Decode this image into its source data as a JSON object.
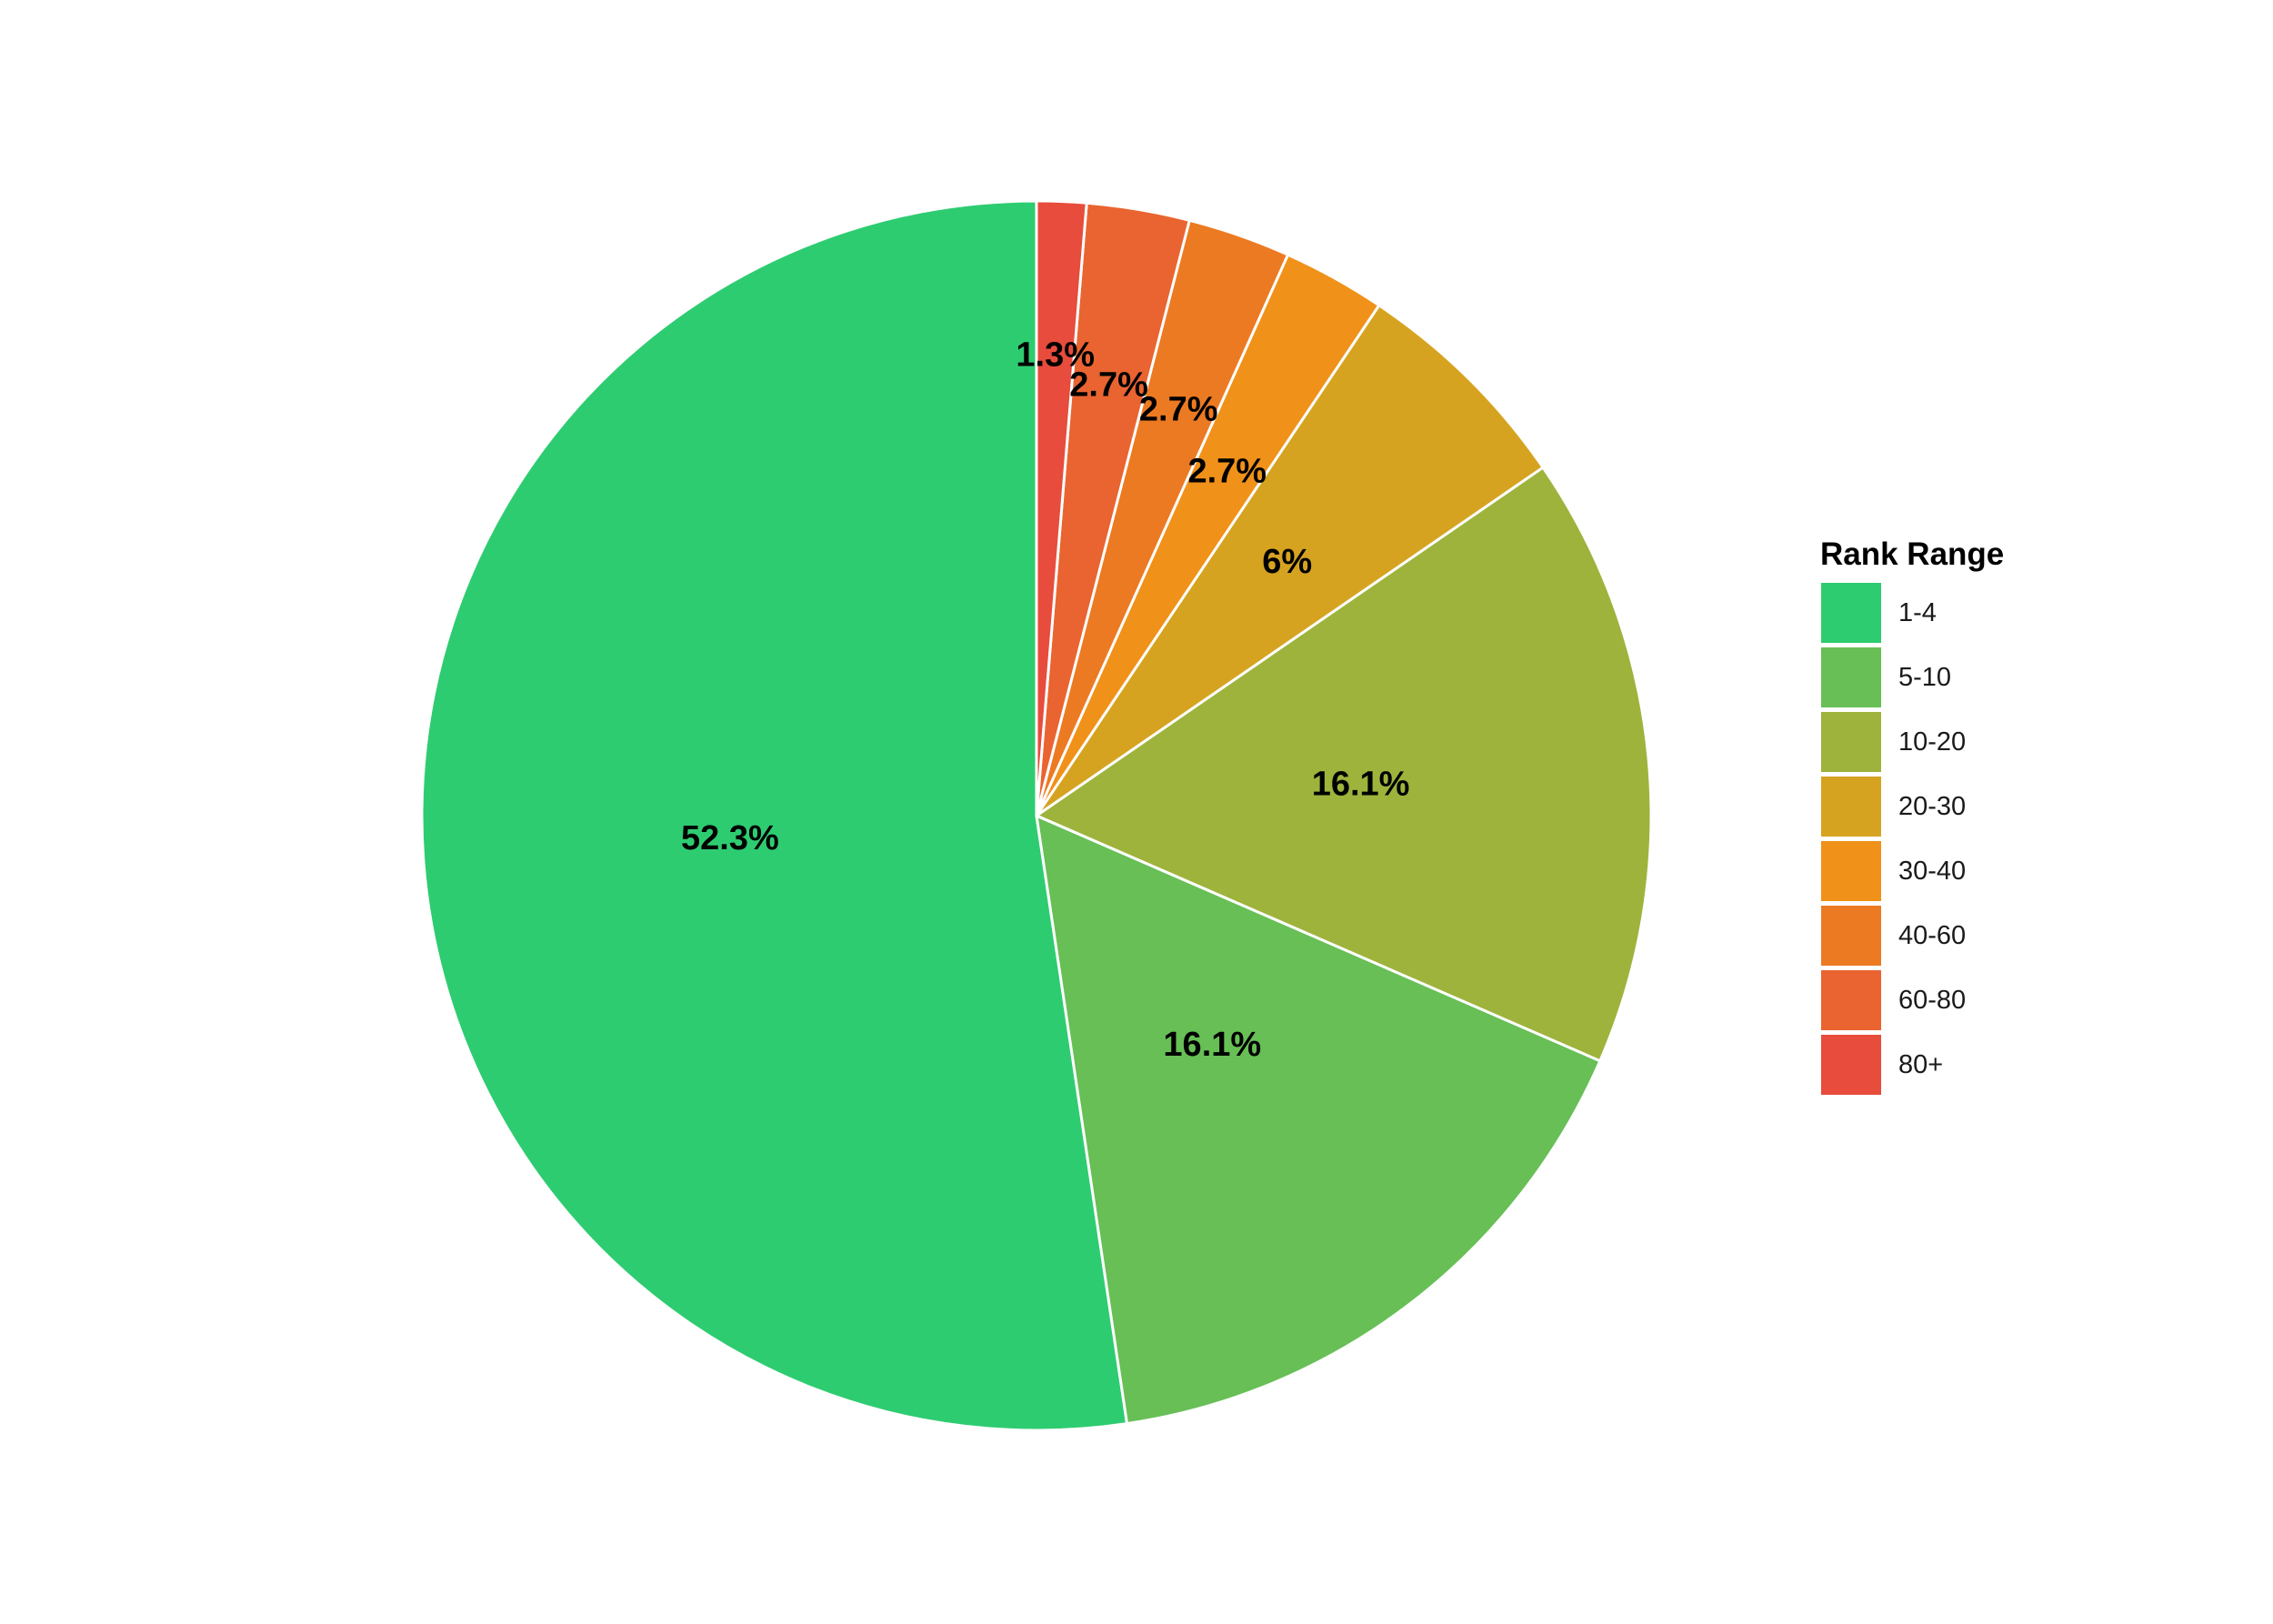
{
  "chart_data": {
    "type": "pie",
    "title": "",
    "legend_title": "Rank Range",
    "legend_position": "right",
    "start": "12 o'clock",
    "direction": "counterclockwise",
    "categories": [
      "1-4",
      "5-10",
      "10-20",
      "20-30",
      "30-40",
      "40-60",
      "60-80",
      "80+"
    ],
    "values": [
      52.3,
      16.1,
      16.1,
      6.0,
      2.7,
      2.7,
      2.7,
      1.3
    ],
    "labels": [
      "52.3%",
      "16.1%",
      "16.1%",
      "6%",
      "2.7%",
      "2.7%",
      "2.7%",
      "1.3%"
    ],
    "colors": [
      "#2ECC71",
      "#67BF56",
      "#9EB33C",
      "#D6A321",
      "#F0911A",
      "#EC7A23",
      "#E96430",
      "#E74C3C"
    ],
    "slice_border_color": "#FFFFFF"
  }
}
